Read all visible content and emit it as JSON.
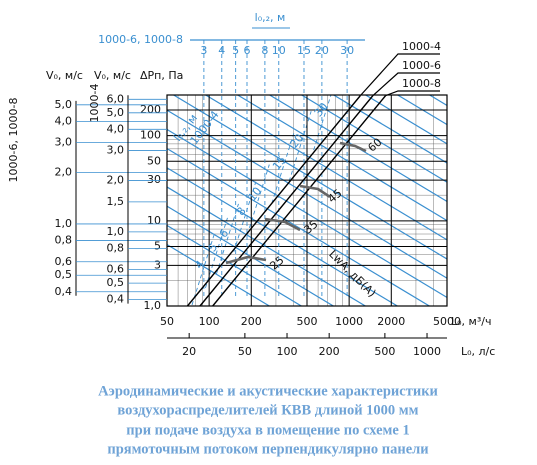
{
  "chart_data": {
    "type": "line",
    "x_log": true,
    "y_log": true,
    "grid": true,
    "xlabel": "L₀, м³/ч",
    "xlim": [
      50,
      5000
    ],
    "xticks": [
      50,
      100,
      200,
      500,
      1000,
      2000,
      5000
    ],
    "ylabel": "ΔPп, Па",
    "ylim": [
      1,
      300
    ],
    "yticks": [
      {
        "value": 1,
        "label": "1,0"
      },
      3,
      5,
      10,
      30,
      50,
      100,
      200
    ],
    "series": [
      {
        "name": "1000-4",
        "color": "#000000",
        "x": [
          70,
          1200
        ],
        "values": [
          1,
          294
        ]
      },
      {
        "name": "1000-6",
        "color": "#000000",
        "x": [
          86,
          1475
        ],
        "values": [
          1,
          294
        ]
      },
      {
        "name": "1000-8",
        "color": "#000000",
        "x": [
          106,
          1818
        ],
        "values": [
          1,
          294
        ]
      }
    ],
    "x2label": "L₀, л/с",
    "x2lim": [
      13.89,
      1388.9
    ],
    "x2ticks": [
      20,
      50,
      100,
      200,
      500,
      1000
    ],
    "velocity_axes": [
      {
        "title": "1000-6, 1000-8",
        "label": "V₀, м/с",
        "ylim": [
          0.33,
          5.71
        ],
        "yticks": [
          {
            "value": 5,
            "label": "5,0"
          },
          {
            "value": 4,
            "label": "4,0"
          },
          {
            "value": 3,
            "label": "3,0"
          },
          {
            "value": 2,
            "label": "2,0"
          },
          {
            "value": 1,
            "label": "1,0"
          },
          {
            "value": 0.8,
            "label": "0,8"
          },
          {
            "value": 0.6,
            "label": "0,6"
          },
          {
            "value": 0.5,
            "label": "0,5"
          },
          {
            "value": 0.4,
            "label": "0,4"
          }
        ]
      },
      {
        "title": "1000-4",
        "label": "V₀, м/с",
        "ylim": [
          0.367,
          6.36
        ],
        "yticks": [
          {
            "value": 6,
            "label": "6,0"
          },
          {
            "value": 5,
            "label": "5,0"
          },
          {
            "value": 4,
            "label": "4,0"
          },
          {
            "value": 3,
            "label": "3,0"
          },
          {
            "value": 2,
            "label": "2,0"
          },
          {
            "value": 1.5,
            "label": "1,5"
          },
          {
            "value": 1,
            "label": "1,0"
          },
          {
            "value": 0.8,
            "label": "0,8"
          },
          {
            "value": 0.6,
            "label": "0,6"
          },
          {
            "value": 0.5,
            "label": "0,5"
          },
          {
            "value": 0.4,
            "label": "0,4"
          }
        ]
      }
    ],
    "throw_axis": {
      "title": "1000-6, 1000-8",
      "label": "l₀,₂, м",
      "xlim": [
        2.4,
        40
      ],
      "xticks": [
        3,
        4,
        5,
        6,
        8,
        10,
        15,
        20,
        30
      ]
    },
    "throw_scale": {
      "title": "1000-4",
      "label": "l₀,₂, м",
      "values": [
        4,
        5,
        6,
        8,
        10,
        15,
        20,
        30
      ]
    },
    "noise": {
      "label": "LwA, дБ(А)",
      "values": [
        25,
        35,
        45,
        60
      ]
    }
  },
  "caption": [
    "Аэродинамические и акустические характеристики",
    "воздухораспределителей КВВ длиной 1000 мм",
    "при подаче воздуха в помещение по схеме 1",
    "прямоточным потоком перпендикулярно панели"
  ]
}
